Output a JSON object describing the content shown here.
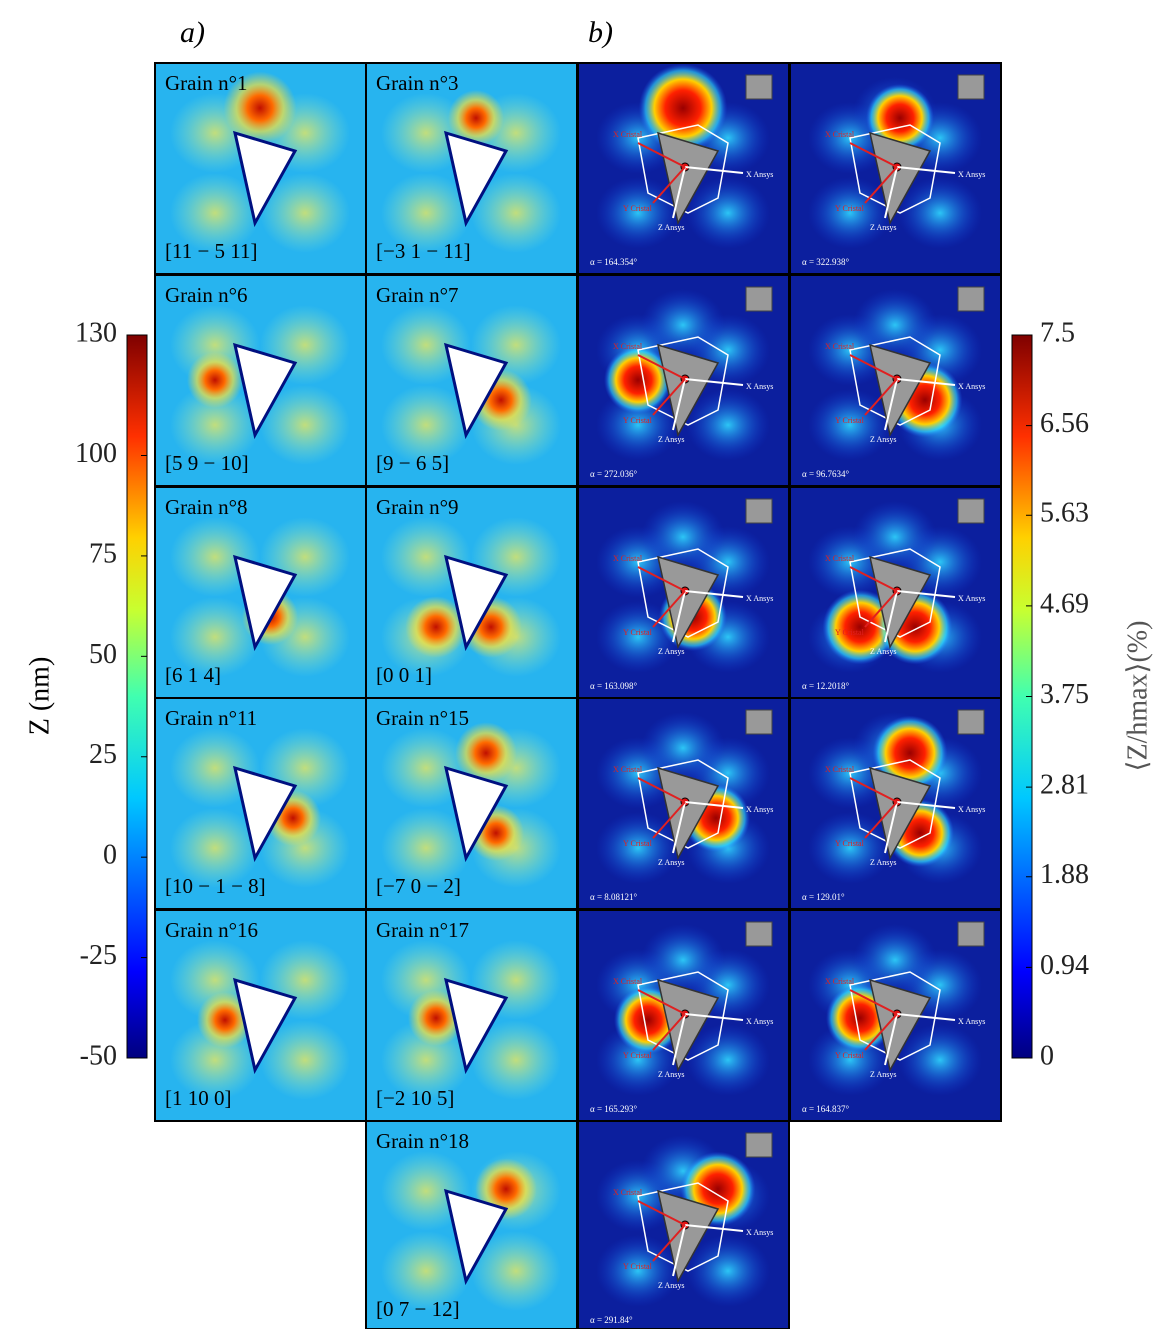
{
  "panels": {
    "a": "a)",
    "b": "b)"
  },
  "grains": [
    {
      "name": "Grain n°1",
      "orientation": "[11 − 5 11]",
      "azimuth": "α = 164.354°"
    },
    {
      "name": "Grain n°3",
      "orientation": "[−3 1 − 11]",
      "azimuth": "α = 322.938°"
    },
    {
      "name": "Grain n°6",
      "orientation": "[5 9 − 10]",
      "azimuth": "α = 272.036°"
    },
    {
      "name": "Grain n°7",
      "orientation": "[9 − 6 5]",
      "azimuth": "α = 96.7634°"
    },
    {
      "name": "Grain n°8",
      "orientation": "[6 1 4]",
      "azimuth": "α = 163.098°"
    },
    {
      "name": "Grain n°9",
      "orientation": "[0 0 1]",
      "azimuth": "α = 12.2018°"
    },
    {
      "name": "Grain n°11",
      "orientation": "[10 − 1 − 8]",
      "azimuth": "α = 8.08121°"
    },
    {
      "name": "Grain n°15",
      "orientation": "[−7 0 − 2]",
      "azimuth": "α = 129.01°"
    },
    {
      "name": "Grain n°16",
      "orientation": "[1 10 0]",
      "azimuth": "α = 165.293°"
    },
    {
      "name": "Grain n°17",
      "orientation": "[−2 10 5]",
      "azimuth": "α = 164.837°"
    },
    {
      "name": "Grain n°18",
      "orientation": "[0 7 − 12]",
      "azimuth": "α = 291.84°"
    }
  ],
  "arrow_labels": {
    "x_cristal": "X Cristal",
    "y_cristal": "Y Cristal",
    "x_ansys": "X Ansys",
    "z_ansys": "Z Ansys"
  },
  "colorbar_left": {
    "label": "Z (nm)",
    "lim": [
      -50,
      130
    ],
    "ticks": [
      130,
      100,
      75,
      50,
      25,
      0,
      -25,
      -50
    ]
  },
  "colorbar_right": {
    "label": "⟨Z/hmax⟩(%)",
    "lim": [
      0,
      7.5
    ],
    "ticks": [
      7.5,
      6.56,
      5.63,
      4.69,
      3.75,
      2.81,
      1.88,
      0.94,
      0
    ]
  }
}
